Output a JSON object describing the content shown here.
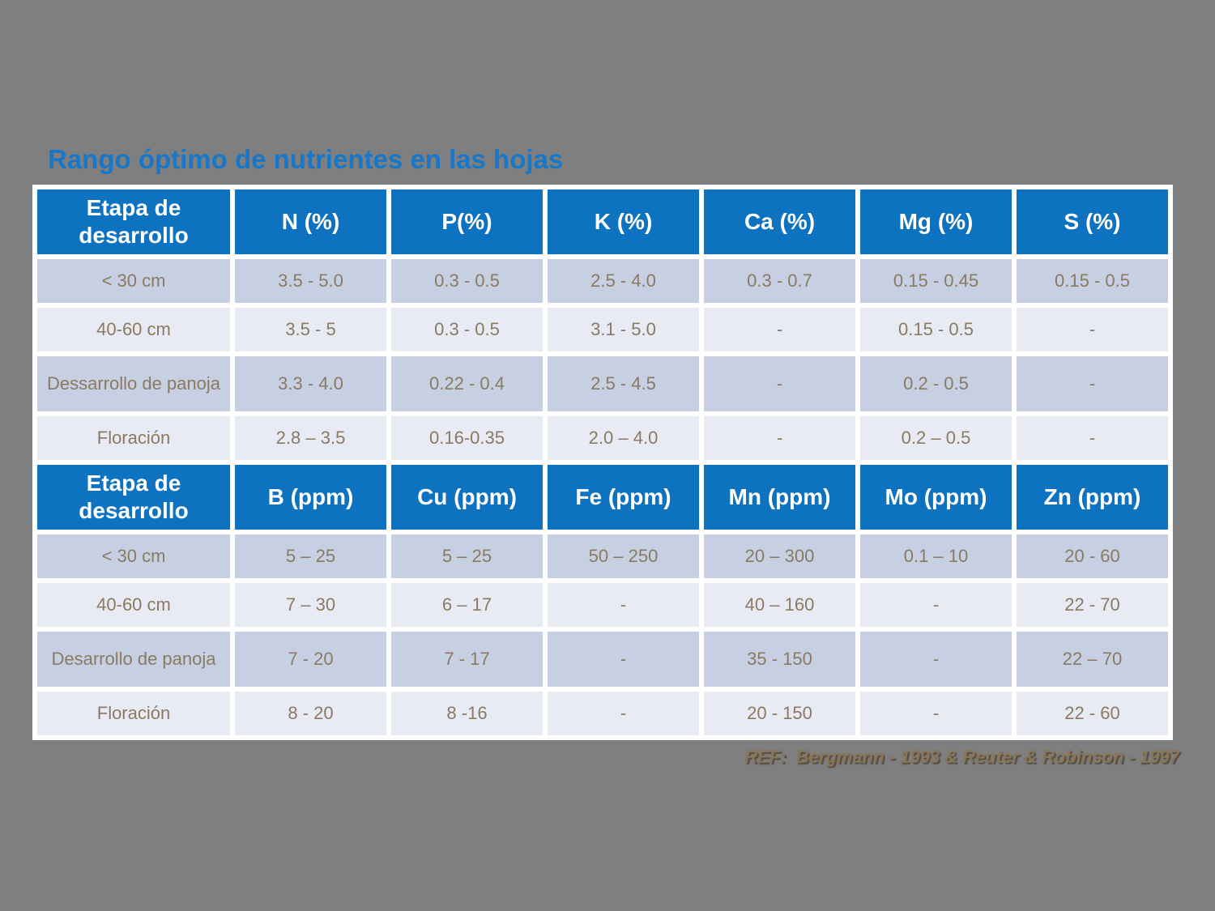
{
  "title": "Rango óptimo de nutrientes en las hojas",
  "colors": {
    "background": "#7f7f7f",
    "header_blue": "#0d72bf",
    "title_blue": "#1777c9",
    "row_dark": "#c6d0e2",
    "row_light": "#e9ebf4",
    "cell_text": "#8b7a62",
    "reference_text": "#8a7456"
  },
  "table": {
    "sections": [
      {
        "headers": [
          "Etapa de desarrollo",
          "N (%)",
          "P(%)",
          "K (%)",
          "Ca (%)",
          "Mg (%)",
          "S (%)"
        ],
        "rows": [
          [
            "< 30 cm",
            "3.5 - 5.0",
            "0.3 - 0.5",
            "2.5 - 4.0",
            "0.3 - 0.7",
            "0.15 - 0.45",
            "0.15 - 0.5"
          ],
          [
            "40-60 cm",
            "3.5 - 5",
            "0.3 - 0.5",
            "3.1 - 5.0",
            "-",
            "0.15 - 0.5",
            "-"
          ],
          [
            "Dessarrollo de panoja",
            "3.3 - 4.0",
            "0.22 - 0.4",
            "2.5 - 4.5",
            "-",
            "0.2 - 0.5",
            "-"
          ],
          [
            "Floración",
            "2.8 – 3.5",
            "0.16-0.35",
            "2.0 – 4.0",
            "-",
            "0.2 – 0.5",
            "-"
          ]
        ]
      },
      {
        "headers": [
          "Etapa de desarrollo",
          "B (ppm)",
          "Cu (ppm)",
          "Fe (ppm)",
          "Mn (ppm)",
          "Mo (ppm)",
          "Zn (ppm)"
        ],
        "rows": [
          [
            "< 30 cm",
            "5 – 25",
            "5 – 25",
            "50 – 250",
            "20 – 300",
            "0.1 – 10",
            "20 - 60"
          ],
          [
            "40-60 cm",
            "7 – 30",
            "6 – 17",
            "-",
            "40 – 160",
            "-",
            "22 - 70"
          ],
          [
            "Desarrollo de panoja",
            "7 - 20",
            "7 - 17",
            "-",
            "35 - 150",
            "-",
            "22 – 70"
          ],
          [
            "Floración",
            "8 - 20",
            "8 -16",
            "-",
            "20 - 150",
            "-",
            "22 - 60"
          ]
        ]
      }
    ]
  },
  "footer": {
    "reference": "REF:  Bergmann - 1993 & Reuter & Robinson - 1997"
  }
}
